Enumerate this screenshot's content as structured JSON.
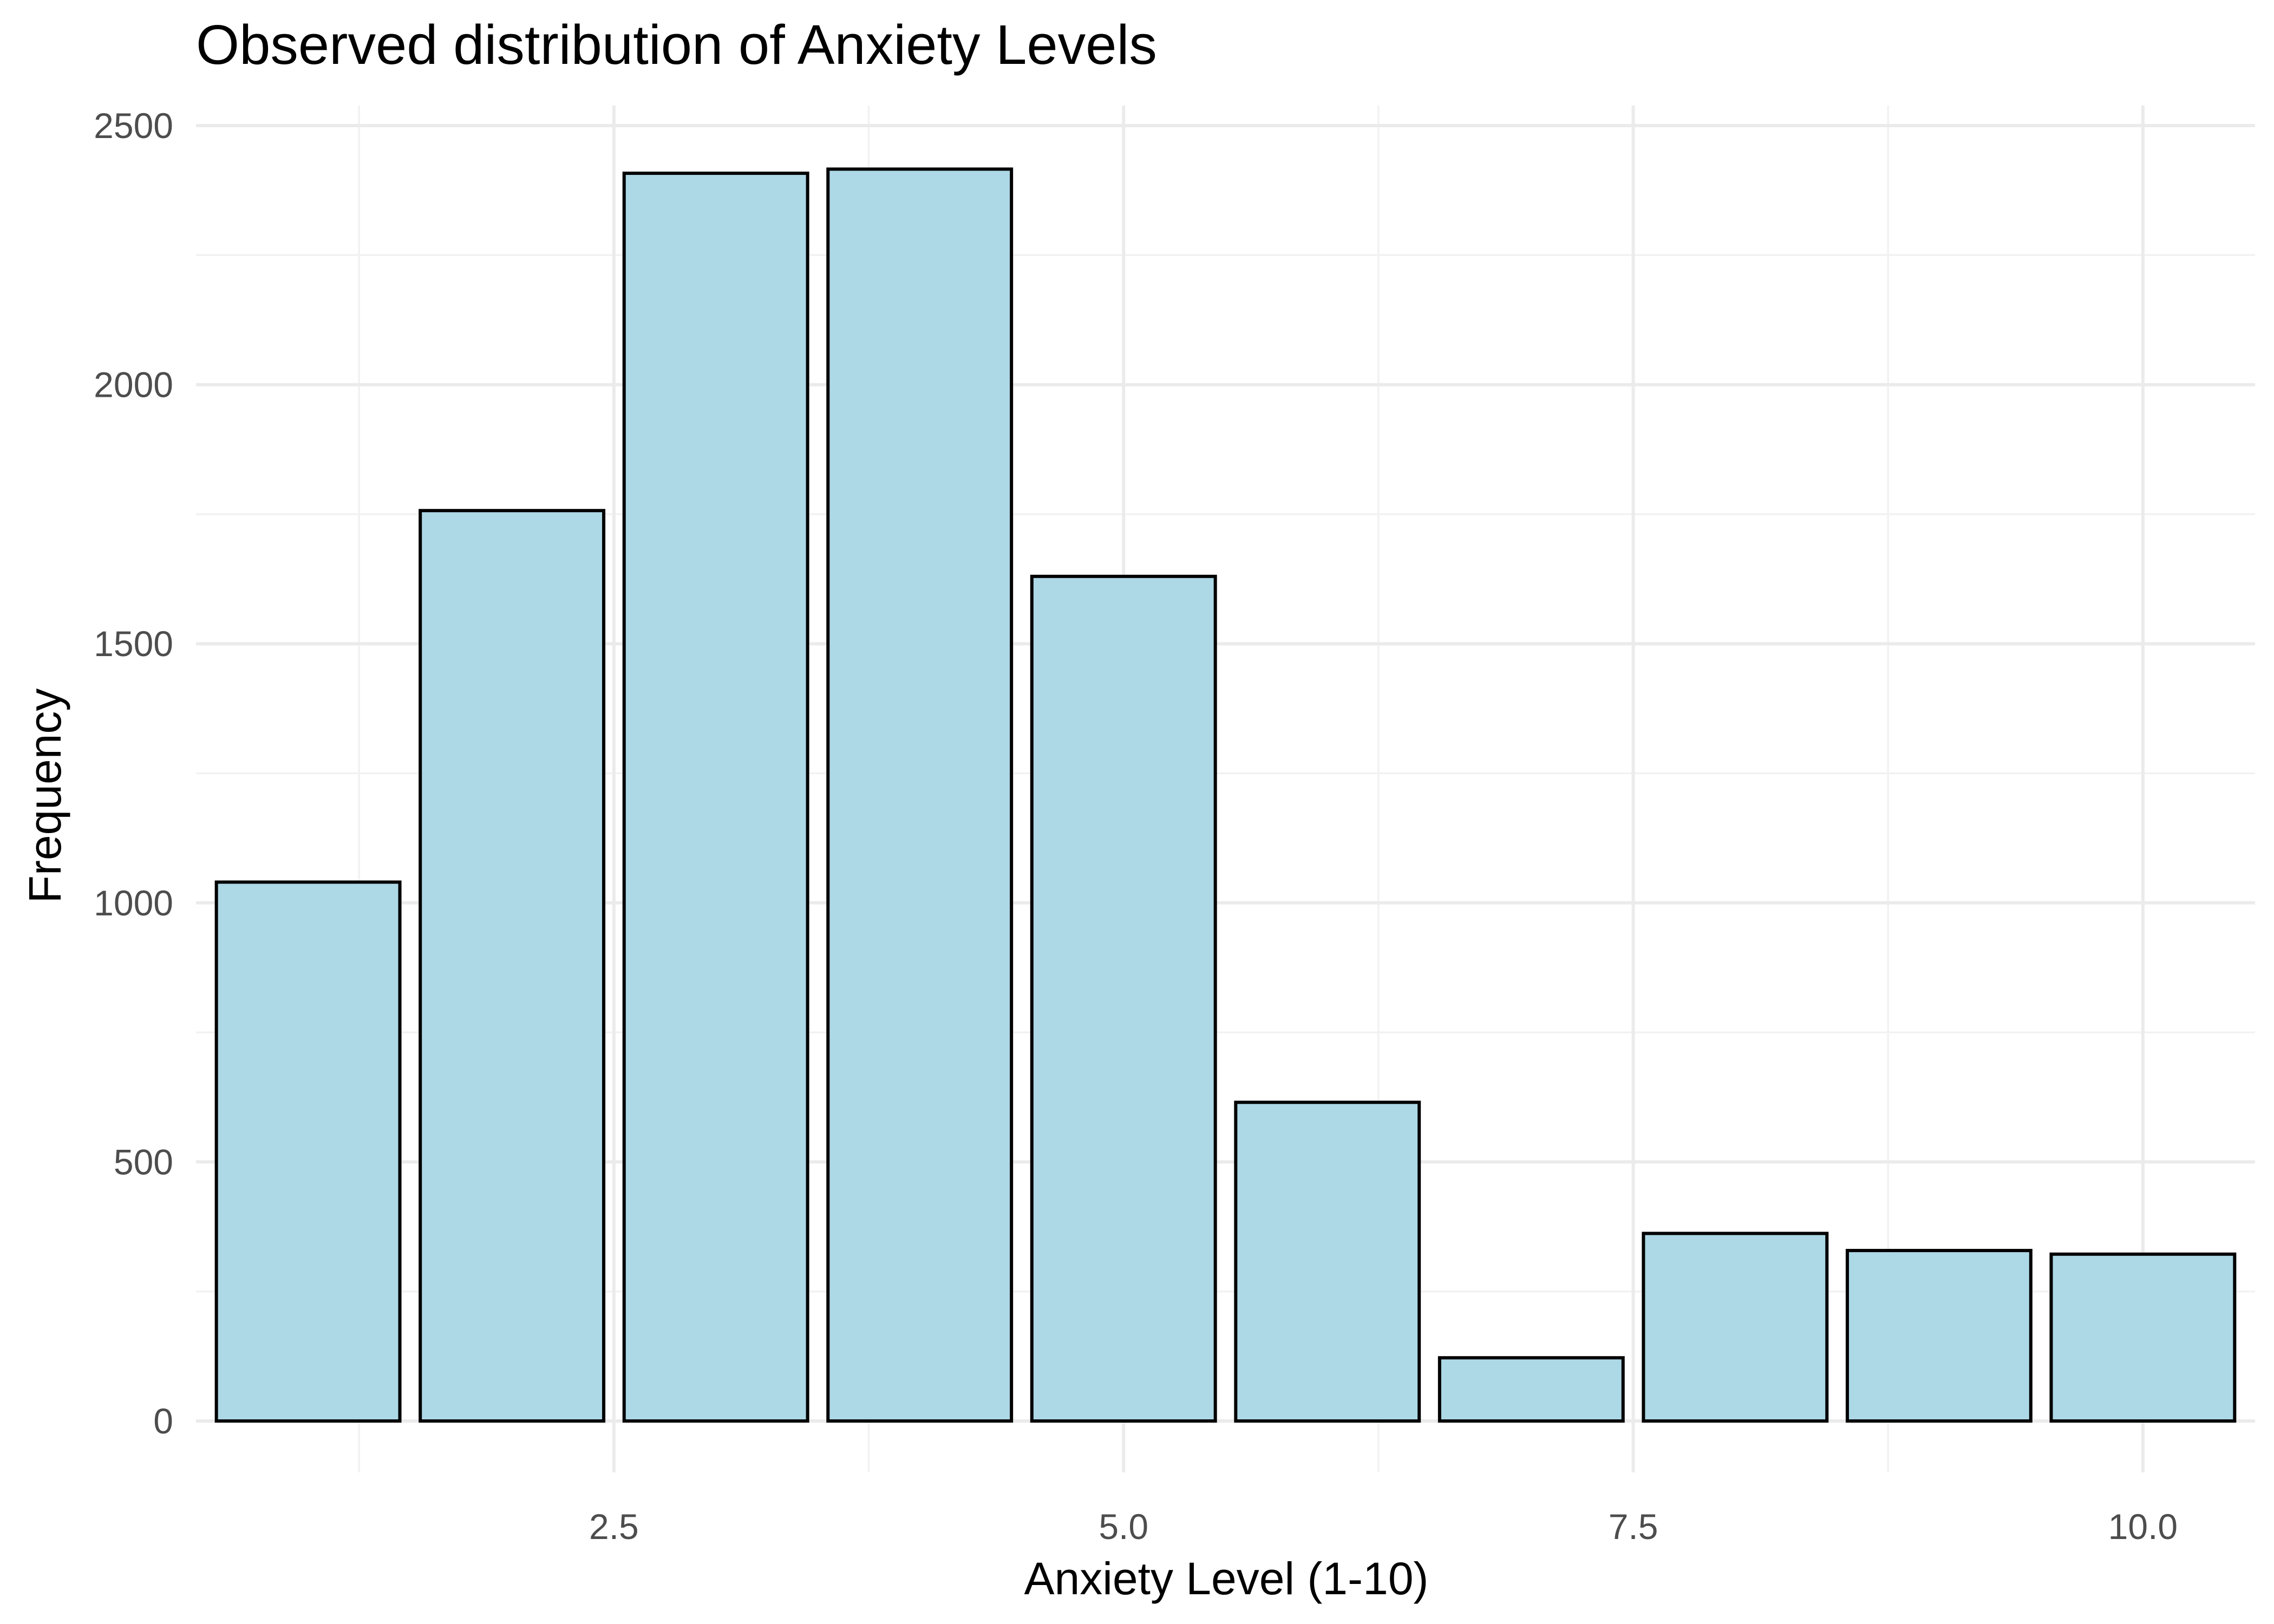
{
  "chart_data": {
    "type": "bar",
    "title": "Observed distribution of Anxiety Levels",
    "xlabel": "Anxiety Level (1-10)",
    "ylabel": "Frequency",
    "x": [
      1,
      2,
      3,
      4,
      5,
      6,
      7,
      8,
      9,
      10
    ],
    "values": [
      1040,
      1757,
      2408,
      2416,
      1630,
      615,
      122,
      362,
      329,
      322
    ],
    "xlim": [
      0.45,
      10.55
    ],
    "ylim": [
      0,
      2500
    ],
    "xticks": [
      2.5,
      5.0,
      7.5,
      10.0
    ],
    "xtick_labels": [
      "2.5",
      "5.0",
      "7.5",
      "10.0"
    ],
    "yticks": [
      0,
      500,
      1000,
      1500,
      2000,
      2500
    ],
    "ytick_labels": [
      "0",
      "500",
      "1000",
      "1500",
      "2000",
      "2500"
    ],
    "grid": true,
    "legend": "none",
    "colors": {
      "bar_fill": "#add8e6",
      "bar_stroke": "#000000",
      "grid": "#ebebeb"
    }
  }
}
